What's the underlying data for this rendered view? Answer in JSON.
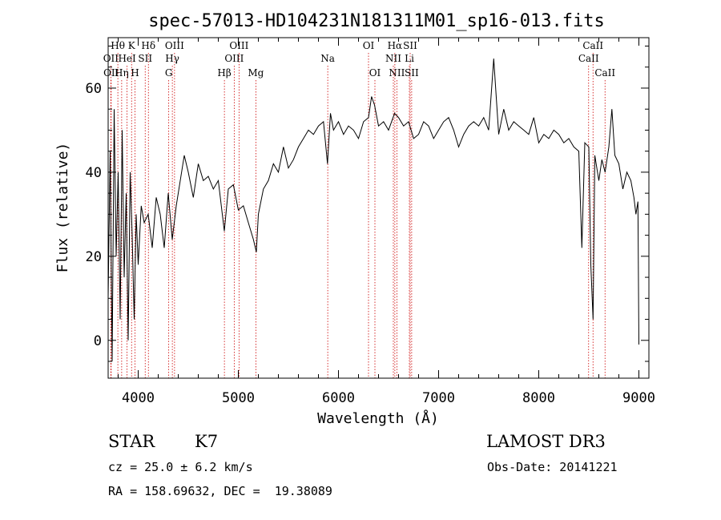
{
  "chart_data": {
    "type": "line",
    "title": "spec-57013-HD104231N181311M01_sp16-013.fits",
    "xlabel": "Wavelength (Å)",
    "ylabel": "Flux (relative)",
    "xlim": [
      3700,
      9100
    ],
    "ylim": [
      -9,
      72
    ],
    "x_ticks": [
      4000,
      5000,
      6000,
      7000,
      8000,
      9000
    ],
    "y_ticks": [
      0,
      20,
      40,
      60
    ],
    "line_color": "#000000",
    "marker_color": "#cc0000",
    "spectrum": {
      "x": [
        3700,
        3720,
        3740,
        3760,
        3780,
        3800,
        3820,
        3840,
        3860,
        3880,
        3900,
        3920,
        3940,
        3960,
        3980,
        4000,
        4030,
        4060,
        4100,
        4140,
        4180,
        4220,
        4260,
        4300,
        4340,
        4380,
        4420,
        4460,
        4500,
        4550,
        4600,
        4650,
        4700,
        4750,
        4800,
        4860,
        4900,
        4950,
        5000,
        5050,
        5100,
        5150,
        5180,
        5200,
        5250,
        5300,
        5350,
        5400,
        5450,
        5500,
        5550,
        5600,
        5650,
        5700,
        5750,
        5800,
        5850,
        5890,
        5920,
        5950,
        6000,
        6050,
        6100,
        6150,
        6200,
        6250,
        6300,
        6330,
        6360,
        6400,
        6450,
        6500,
        6560,
        6600,
        6650,
        6700,
        6750,
        6800,
        6850,
        6900,
        6950,
        7000,
        7050,
        7100,
        7150,
        7200,
        7250,
        7300,
        7350,
        7400,
        7450,
        7500,
        7550,
        7600,
        7650,
        7700,
        7750,
        7800,
        7850,
        7900,
        7950,
        8000,
        8050,
        8100,
        8150,
        8200,
        8250,
        8300,
        8350,
        8400,
        8430,
        8460,
        8500,
        8520,
        8542,
        8560,
        8600,
        8630,
        8662,
        8700,
        8730,
        8760,
        8800,
        8840,
        8880,
        8920,
        8950,
        8970,
        8990,
        9000
      ],
      "y": [
        10,
        45,
        -5,
        55,
        20,
        40,
        5,
        50,
        15,
        35,
        0,
        40,
        25,
        5,
        30,
        18,
        32,
        28,
        30,
        22,
        34,
        30,
        22,
        35,
        24,
        32,
        38,
        44,
        40,
        34,
        42,
        38,
        39,
        36,
        38,
        26,
        36,
        37,
        31,
        32,
        28,
        24,
        21,
        30,
        36,
        38,
        42,
        40,
        46,
        41,
        43,
        46,
        48,
        50,
        49,
        51,
        52,
        42,
        54,
        50,
        52,
        49,
        51,
        50,
        48,
        52,
        53,
        58,
        56,
        51,
        52,
        50,
        54,
        53,
        51,
        52,
        48,
        49,
        52,
        51,
        48,
        50,
        52,
        53,
        50,
        46,
        49,
        51,
        52,
        51,
        53,
        50,
        67,
        49,
        55,
        50,
        52,
        51,
        50,
        49,
        53,
        47,
        49,
        48,
        50,
        49,
        47,
        48,
        46,
        45,
        22,
        47,
        46,
        18,
        5,
        44,
        38,
        43,
        40,
        46,
        55,
        44,
        42,
        36,
        40,
        38,
        34,
        30,
        33,
        -1
      ]
    },
    "lines": [
      {
        "label": "Hθ",
        "x": 3797,
        "row": 1
      },
      {
        "label": "K",
        "x": 3934,
        "row": 1
      },
      {
        "label": "Hδ",
        "x": 4102,
        "row": 1
      },
      {
        "label": "OII",
        "x": 3727,
        "row": 2
      },
      {
        "label": "HeI",
        "x": 3889,
        "row": 2
      },
      {
        "label": "SII",
        "x": 4070,
        "row": 2
      },
      {
        "label": "OII",
        "x": 3730,
        "row": 3
      },
      {
        "label": "Hη",
        "x": 3835,
        "row": 3
      },
      {
        "label": "H",
        "x": 3968,
        "row": 3
      },
      {
        "label": "OIII",
        "x": 4363,
        "row": 1
      },
      {
        "label": "Hγ",
        "x": 4341,
        "row": 2
      },
      {
        "label": "G",
        "x": 4305,
        "row": 3
      },
      {
        "label": "OIII",
        "x": 5007,
        "row": 1
      },
      {
        "label": "OIII",
        "x": 4959,
        "row": 2
      },
      {
        "label": "Hβ",
        "x": 4861,
        "row": 3
      },
      {
        "label": "Mg",
        "x": 5175,
        "row": 3
      },
      {
        "label": "Na",
        "x": 5893,
        "row": 2
      },
      {
        "label": "OI",
        "x": 6300,
        "row": 1
      },
      {
        "label": "OI",
        "x": 6364,
        "row": 3
      },
      {
        "label": "Hα",
        "x": 6563,
        "row": 1
      },
      {
        "label": "SII",
        "x": 6716,
        "row": 1
      },
      {
        "label": "NII",
        "x": 6548,
        "row": 2
      },
      {
        "label": "Li",
        "x": 6708,
        "row": 2
      },
      {
        "label": "NII",
        "x": 6583,
        "row": 3
      },
      {
        "label": "SII",
        "x": 6731,
        "row": 3
      },
      {
        "label": "CaII",
        "x": 8542,
        "row": 1
      },
      {
        "label": "CaII",
        "x": 8498,
        "row": 2
      },
      {
        "label": "CaII",
        "x": 8662,
        "row": 3
      }
    ]
  },
  "info": {
    "class": "STAR",
    "subclass": "K7",
    "survey": "LAMOST DR3",
    "cz": "cz = 25.0 ± 6.2 km/s",
    "obs_date": "Obs-Date: 20141221",
    "coords": "RA = 158.69632, DEC =  19.38089"
  }
}
